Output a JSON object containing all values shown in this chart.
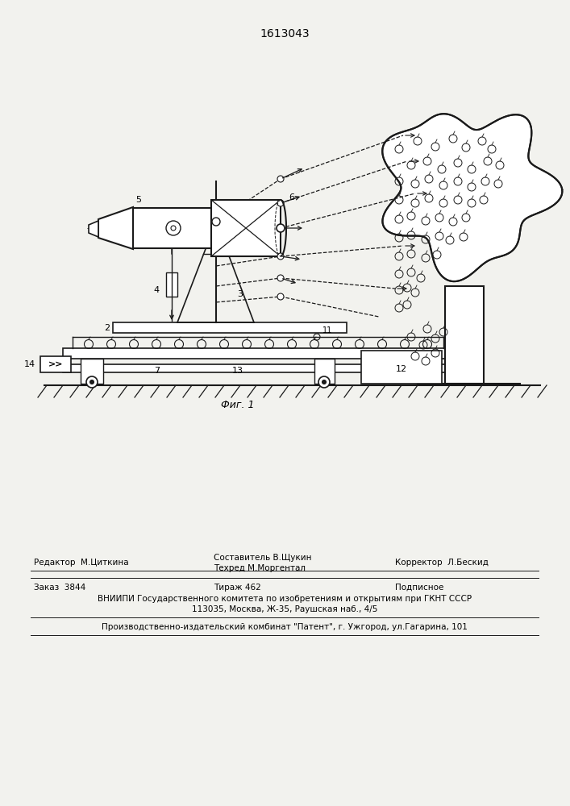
{
  "patent_number": "1613043",
  "fig_label": "Фиг. 1",
  "bg_color": "#f2f2ee",
  "line_color": "#1a1a1a",
  "footer_lines": [
    [
      "Редактор  М.Циткина",
      "Составитель В.Щукин\nТехред М.Моргентал",
      "Корректор  Л.Бескид"
    ],
    [
      "Заказ  3844",
      "Тираж 462",
      "Подписное"
    ],
    [
      "ВНИИПИ Государственного комитета по изобретениям и открытиям при ГКНТ СССР"
    ],
    [
      "113035, Москва, Ж-35, Раушская наб., 4/5"
    ],
    [
      "Производственно-издательский комбинат \"Патент\", г. Ужгород, ул.Гагарина, 101"
    ]
  ]
}
